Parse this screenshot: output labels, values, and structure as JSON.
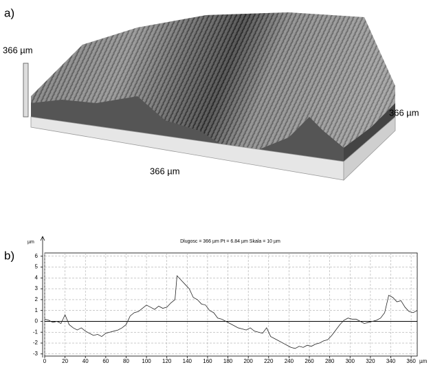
{
  "panel_a": {
    "label": "a)",
    "left_dimension": "366 µm",
    "right_dimension": "366 µm",
    "front_dimension": "366 µm"
  },
  "chart_data": {
    "type": "line",
    "label": "b)",
    "title": "Dlugosc = 366 µm  Pt = 6.84 µm  Skala = 10 µm",
    "xlabel": "µm",
    "ylabel": "µm",
    "x": [
      0,
      4,
      8,
      12,
      16,
      20,
      24,
      28,
      32,
      36,
      40,
      44,
      48,
      52,
      56,
      60,
      64,
      68,
      72,
      76,
      80,
      84,
      88,
      92,
      96,
      100,
      104,
      108,
      112,
      116,
      120,
      124,
      128,
      130,
      134,
      138,
      142,
      146,
      150,
      154,
      158,
      162,
      166,
      170,
      174,
      178,
      182,
      186,
      190,
      194,
      198,
      202,
      206,
      210,
      214,
      218,
      222,
      226,
      230,
      234,
      238,
      242,
      246,
      250,
      254,
      258,
      262,
      266,
      270,
      274,
      278,
      282,
      286,
      290,
      294,
      298,
      302,
      306,
      310,
      314,
      318,
      322,
      326,
      330,
      334,
      338,
      342,
      346,
      350,
      354,
      358,
      362,
      366
    ],
    "series": [
      {
        "color": "#222222",
        "values": [
          0.2,
          0.1,
          -0.1,
          0,
          -0.2,
          0.6,
          -0.3,
          -0.6,
          -0.8,
          -0.6,
          -0.9,
          -1.1,
          -1.3,
          -1.2,
          -1.4,
          -1.1,
          -1.0,
          -0.9,
          -0.8,
          -0.6,
          -0.3,
          0.5,
          0.8,
          0.9,
          1.2,
          1.5,
          1.3,
          1.1,
          1.4,
          1.2,
          1.3,
          1.7,
          2.0,
          4.2,
          3.8,
          3.4,
          3.0,
          2.2,
          2.0,
          1.6,
          1.5,
          1.0,
          0.8,
          0.3,
          0.2,
          0,
          -0.2,
          -0.4,
          -0.6,
          -0.7,
          -0.8,
          -0.6,
          -0.9,
          -1.0,
          -1.1,
          -0.6,
          -1.4,
          -1.6,
          -1.8,
          -2.0,
          -2.2,
          -2.4,
          -2.5,
          -2.3,
          -2.4,
          -2.2,
          -2.3,
          -2.1,
          -2.0,
          -1.8,
          -1.7,
          -1.3,
          -0.8,
          -0.3,
          0.1,
          0.3,
          0.2,
          0.2,
          0,
          -0.2,
          -0.1,
          0,
          0.1,
          0.3,
          0.8,
          2.4,
          2.2,
          1.8,
          1.9,
          1.3,
          0.9,
          0.8,
          1.0
        ]
      }
    ],
    "xlim": [
      0,
      366
    ],
    "ylim": [
      -3.2,
      6.3
    ],
    "xticks": [
      0,
      20,
      40,
      60,
      80,
      100,
      120,
      140,
      160,
      180,
      200,
      220,
      240,
      260,
      280,
      300,
      320,
      340,
      360
    ],
    "yticks": [
      -3,
      -2,
      -1,
      0,
      1,
      2,
      3,
      4,
      5,
      6
    ],
    "grid": true,
    "zero_line": true
  }
}
